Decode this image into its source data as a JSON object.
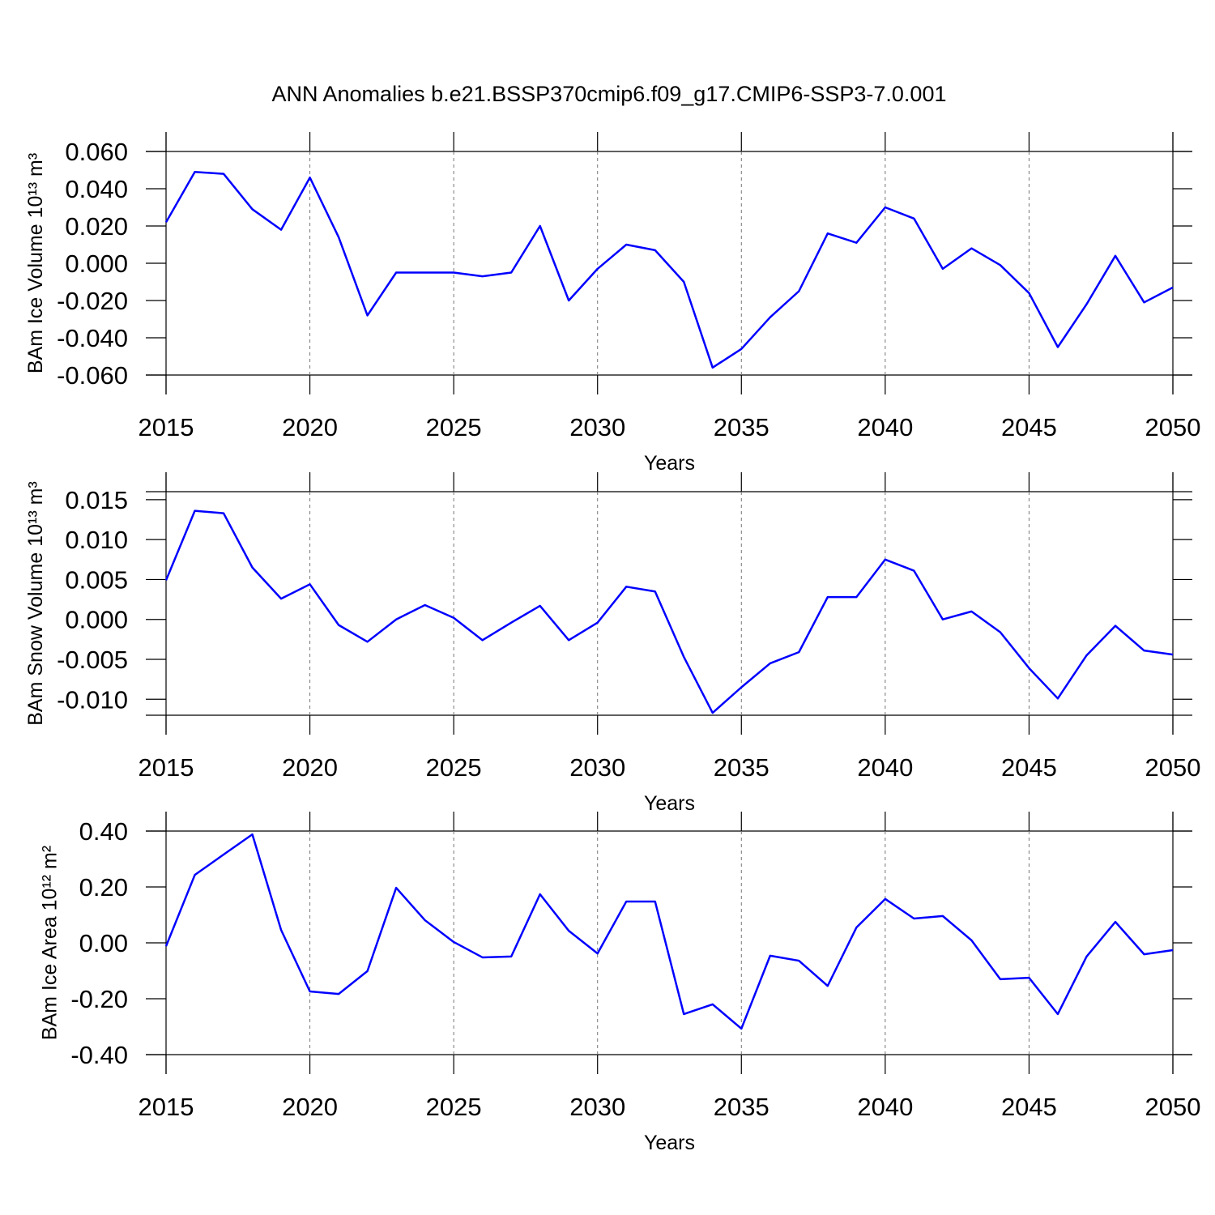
{
  "title": "ANN Anomalies b.e21.BSSP370cmip6.f09_g17.CMIP6-SSP3-7.0.001",
  "chart_data": [
    {
      "type": "line",
      "x_label": "Years",
      "y_label": "BAm Ice Volume 10¹³ m³",
      "color": "#0000ff",
      "grid": "x",
      "x": [
        2015,
        2016,
        2017,
        2018,
        2019,
        2020,
        2021,
        2022,
        2023,
        2024,
        2025,
        2026,
        2027,
        2028,
        2029,
        2030,
        2031,
        2032,
        2033,
        2034,
        2035,
        2036,
        2037,
        2038,
        2039,
        2040,
        2041,
        2042,
        2043,
        2044,
        2045,
        2046,
        2047,
        2048,
        2049,
        2050
      ],
      "values": [
        0.022,
        0.049,
        0.048,
        0.029,
        0.018,
        0.046,
        0.014,
        -0.028,
        -0.005,
        -0.005,
        -0.005,
        -0.007,
        -0.005,
        0.02,
        -0.02,
        -0.003,
        0.01,
        0.007,
        -0.01,
        -0.056,
        -0.046,
        -0.029,
        -0.015,
        0.016,
        0.011,
        0.03,
        0.024,
        -0.003,
        0.008,
        -0.001,
        -0.016,
        -0.045,
        -0.022,
        0.004,
        -0.021,
        -0.013
      ],
      "xlim": [
        2015,
        2050
      ],
      "xticks": [
        2015,
        2020,
        2025,
        2030,
        2035,
        2040,
        2045,
        2050
      ],
      "ylim": [
        -0.06,
        0.06
      ],
      "yticks": [
        {
          "value": 0.06,
          "label": "0.060"
        },
        {
          "value": 0.04,
          "label": "0.040"
        },
        {
          "value": 0.02,
          "label": "0.020"
        },
        {
          "value": 0,
          "label": "0.000"
        },
        {
          "value": -0.02,
          "label": "-0.020"
        },
        {
          "value": -0.04,
          "label": "-0.040"
        },
        {
          "value": -0.06,
          "label": "-0.060"
        }
      ]
    },
    {
      "type": "line",
      "x_label": "Years",
      "y_label": "BAm Snow Volume 10¹³ m³",
      "color": "#0000ff",
      "grid": "x",
      "x": [
        2015,
        2016,
        2017,
        2018,
        2019,
        2020,
        2021,
        2022,
        2023,
        2024,
        2025,
        2026,
        2027,
        2028,
        2029,
        2030,
        2031,
        2032,
        2033,
        2034,
        2035,
        2036,
        2037,
        2038,
        2039,
        2040,
        2041,
        2042,
        2043,
        2044,
        2045,
        2046,
        2047,
        2048,
        2049,
        2050
      ],
      "values": [
        0.0049,
        0.0136,
        0.0133,
        0.0065,
        0.0026,
        0.0044,
        -0.0007,
        -0.0028,
        0.0,
        0.0018,
        0.0002,
        -0.0026,
        -0.0004,
        0.0017,
        -0.0026,
        -0.0004,
        0.0041,
        0.0035,
        -0.0047,
        -0.0117,
        -0.0085,
        -0.0055,
        -0.0041,
        0.0028,
        0.0028,
        0.0075,
        0.0061,
        0.0,
        0.001,
        -0.0016,
        -0.0061,
        -0.0099,
        -0.0045,
        -0.0008,
        -0.0039,
        -0.0044
      ],
      "xlim": [
        2015,
        2050
      ],
      "xticks": [
        2015,
        2020,
        2025,
        2030,
        2035,
        2040,
        2045,
        2050
      ],
      "ylim": [
        -0.012,
        0.016
      ],
      "yticks": [
        {
          "value": 0.015,
          "label": "0.015"
        },
        {
          "value": 0.01,
          "label": "0.010"
        },
        {
          "value": 0.005,
          "label": "0.005"
        },
        {
          "value": 0,
          "label": "0.000"
        },
        {
          "value": -0.005,
          "label": "-0.005"
        },
        {
          "value": -0.01,
          "label": "-0.010"
        }
      ]
    },
    {
      "type": "line",
      "x_label": "Years",
      "y_label": "BAm Ice Area 10¹² m²",
      "color": "#0000ff",
      "grid": "x",
      "x": [
        2015,
        2016,
        2017,
        2018,
        2019,
        2020,
        2021,
        2022,
        2023,
        2024,
        2025,
        2026,
        2027,
        2028,
        2029,
        2030,
        2031,
        2032,
        2033,
        2034,
        2035,
        2036,
        2037,
        2038,
        2039,
        2040,
        2041,
        2042,
        2043,
        2044,
        2045,
        2046,
        2047,
        2048,
        2049,
        2050
      ],
      "values": [
        -0.012,
        0.243,
        0.316,
        0.388,
        0.046,
        -0.174,
        -0.183,
        -0.101,
        0.197,
        0.081,
        0.003,
        -0.052,
        -0.049,
        0.174,
        0.043,
        -0.038,
        0.148,
        0.148,
        -0.255,
        -0.22,
        -0.307,
        -0.046,
        -0.064,
        -0.154,
        0.055,
        0.157,
        0.087,
        0.096,
        0.009,
        -0.13,
        -0.125,
        -0.255,
        -0.049,
        0.075,
        -0.041,
        -0.026
      ],
      "xlim": [
        2015,
        2050
      ],
      "xticks": [
        2015,
        2020,
        2025,
        2030,
        2035,
        2040,
        2045,
        2050
      ],
      "ylim": [
        -0.4,
        0.4
      ],
      "yticks": [
        {
          "value": 0.4,
          "label": "0.40"
        },
        {
          "value": 0.2,
          "label": "0.20"
        },
        {
          "value": 0,
          "label": "0.00"
        },
        {
          "value": -0.2,
          "label": "-0.20"
        },
        {
          "value": -0.4,
          "label": "-0.40"
        }
      ]
    }
  ]
}
